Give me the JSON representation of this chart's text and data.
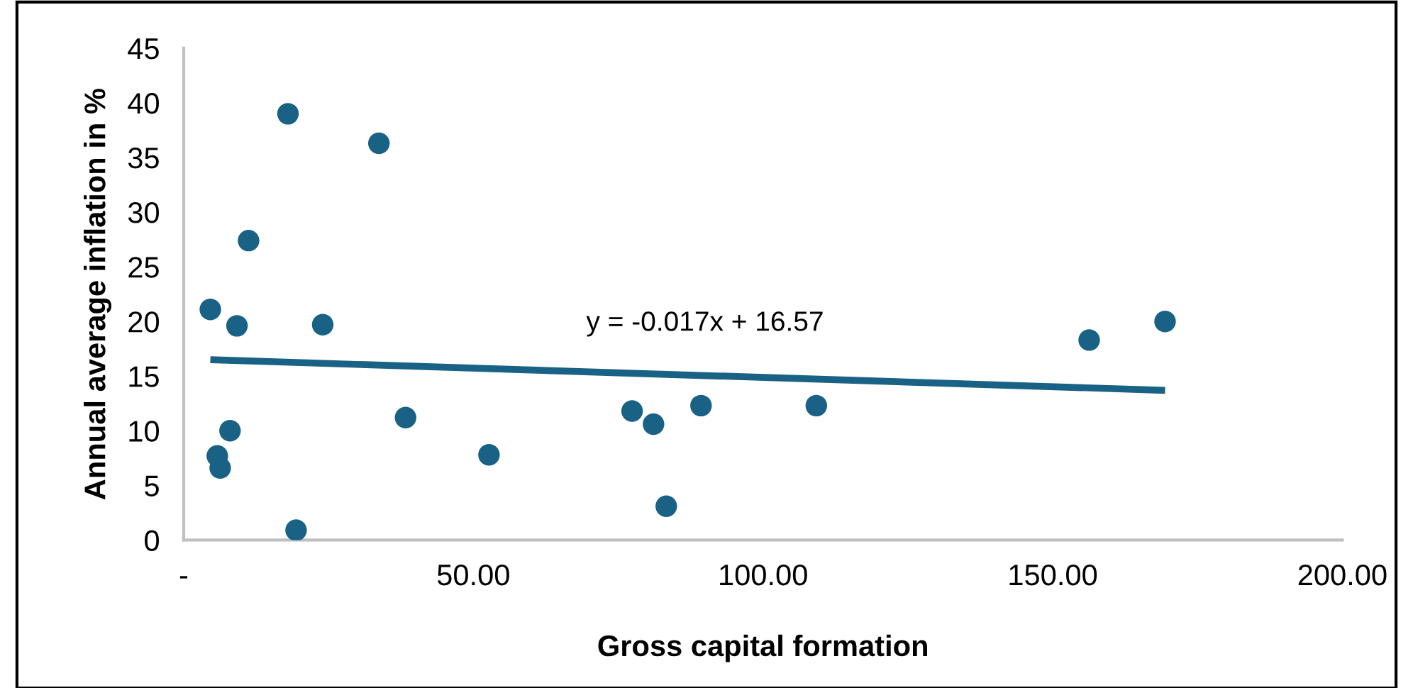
{
  "chart_data": {
    "type": "scatter",
    "xlabel": "Gross capital formation",
    "ylabel": "Annual average inflation in %",
    "series": [
      {
        "color": "#1a6285",
        "marker": "circle",
        "x": [
          4.6,
          5.8,
          6.3,
          8.0,
          9.2,
          11.2,
          18.0,
          19.4,
          24.0,
          33.7,
          38.3,
          52.7,
          77.4,
          81.1,
          83.3,
          89.3,
          109.2,
          156.3,
          169.4
        ],
        "values": [
          21.1,
          7.7,
          6.6,
          10.0,
          19.6,
          27.4,
          39.0,
          0.9,
          19.7,
          36.3,
          11.2,
          7.8,
          11.8,
          10.6,
          3.1,
          12.3,
          12.3,
          18.3,
          20.0
        ]
      },
      {
        "type": "line",
        "color": "#1a6285",
        "marker": "none",
        "x": [
          4.6,
          169.4
        ],
        "values": [
          16.5,
          13.7
        ]
      }
    ],
    "annotations": [
      "y = -0.017x + 16.57"
    ],
    "xlim": [
      0,
      200
    ],
    "xticks": [
      {
        "value": 0,
        "label": "-"
      },
      {
        "value": 50,
        "label": "50.00"
      },
      {
        "value": 100,
        "label": "100.00"
      },
      {
        "value": 150,
        "label": "150.00"
      },
      {
        "value": 200,
        "label": "200.00"
      }
    ],
    "ylim": [
      0,
      45
    ],
    "yticks": [
      0,
      5,
      10,
      15,
      20,
      25,
      30,
      35,
      40,
      45
    ],
    "grid": false,
    "legend": false
  }
}
